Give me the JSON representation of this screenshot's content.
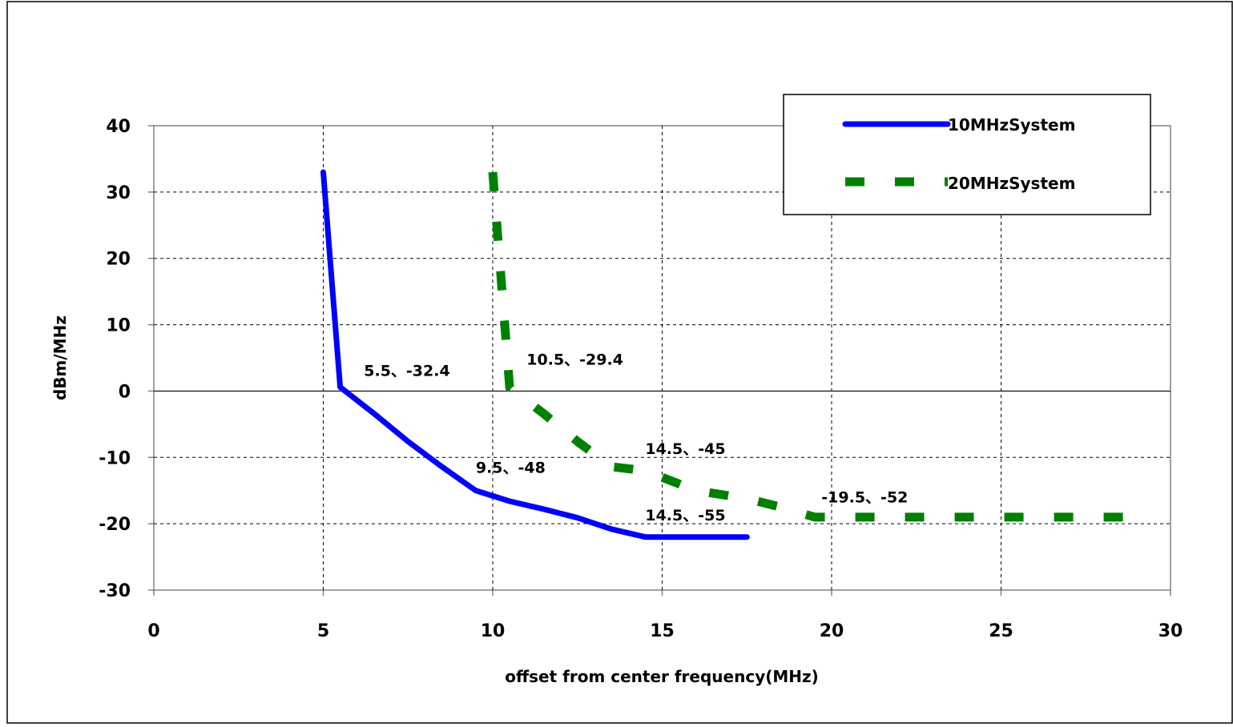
{
  "chart_data": {
    "type": "line",
    "xlabel": "offset from center frequency(MHz)",
    "ylabel": "dBm/MHz",
    "xlim": [
      0,
      30
    ],
    "ylim": [
      -30,
      40
    ],
    "x_ticks": [
      0,
      5,
      10,
      15,
      20,
      25,
      30
    ],
    "y_ticks": [
      40,
      30,
      20,
      10,
      0,
      -10,
      -20,
      -30
    ],
    "grid": true,
    "legend_position": "top-right",
    "series": [
      {
        "name": "10MHzSystem",
        "color": "#0000ff",
        "style": "solid",
        "points": [
          [
            5,
            33
          ],
          [
            5.5,
            0.6
          ],
          [
            6.5,
            -3.4
          ],
          [
            7.5,
            -7.6
          ],
          [
            8.5,
            -11.4
          ],
          [
            9.5,
            -15
          ],
          [
            10.5,
            -16.6
          ],
          [
            11.5,
            -17.8
          ],
          [
            12.5,
            -19.1
          ],
          [
            13.5,
            -20.8
          ],
          [
            14.5,
            -22
          ],
          [
            15.5,
            -22
          ],
          [
            16.5,
            -22
          ],
          [
            17.5,
            -22
          ]
        ]
      },
      {
        "name": "20MHzSystem",
        "color": "#008000",
        "style": "dashed",
        "points": [
          [
            10,
            33
          ],
          [
            10.5,
            0.6
          ],
          [
            11.5,
            -3.4
          ],
          [
            12.5,
            -7.6
          ],
          [
            13.5,
            -11.4
          ],
          [
            14.5,
            -12
          ],
          [
            16,
            -15
          ],
          [
            17.5,
            -16.2
          ],
          [
            18.5,
            -17.5
          ],
          [
            19.5,
            -19
          ],
          [
            20.5,
            -19
          ],
          [
            22,
            -19
          ],
          [
            24,
            -19
          ],
          [
            26,
            -19
          ],
          [
            28,
            -19
          ],
          [
            29.3,
            -19
          ]
        ]
      }
    ],
    "annotations": [
      {
        "text": "5.5、-32.4",
        "x": 6.2,
        "y": 2.3
      },
      {
        "text": "10.5、-29.4",
        "x": 11,
        "y": 4
      },
      {
        "text": "9.5、-48",
        "x": 9.5,
        "y": -12.3
      },
      {
        "text": "14.5、-45",
        "x": 14.5,
        "y": -9.5
      },
      {
        "text": "14.5、-55",
        "x": 14.5,
        "y": -19.5
      },
      {
        "text": "-19.5、-52",
        "x": 19.7,
        "y": -16.8
      }
    ]
  }
}
